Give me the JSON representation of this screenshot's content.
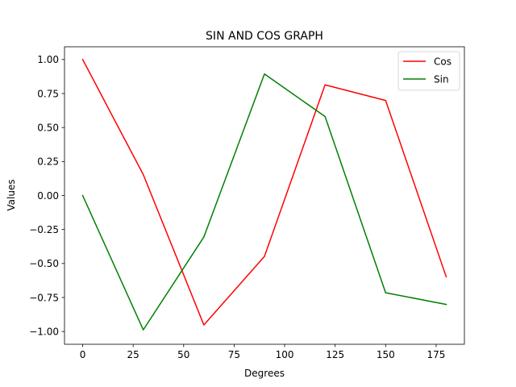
{
  "chart_data": {
    "type": "line",
    "title": "SIN AND COS GRAPH",
    "xlabel": "Degrees",
    "ylabel": "Values",
    "x": [
      0,
      30,
      60,
      90,
      120,
      150,
      180
    ],
    "series": [
      {
        "name": "Cos",
        "color": "#ff0000",
        "values": [
          1.0,
          0.154,
          -0.952,
          -0.448,
          0.814,
          0.699,
          -0.598
        ]
      },
      {
        "name": "Sin",
        "color": "#008000",
        "values": [
          0.0,
          -0.988,
          -0.305,
          0.894,
          0.581,
          -0.715,
          -0.801
        ]
      }
    ],
    "xlim": [
      -9,
      189
    ],
    "ylim": [
      -1.094,
      1.094
    ],
    "xticks": [
      0,
      25,
      50,
      75,
      100,
      125,
      150,
      175
    ],
    "xtick_labels": [
      "0",
      "25",
      "50",
      "75",
      "100",
      "125",
      "150",
      "175"
    ],
    "yticks": [
      1.0,
      0.75,
      0.5,
      0.25,
      0.0,
      -0.25,
      -0.5,
      -0.75,
      -1.0
    ],
    "ytick_labels": [
      "1.00",
      "0.75",
      "0.50",
      "0.25",
      "0.00",
      "−0.25",
      "−0.50",
      "−0.75",
      "−1.00"
    ],
    "grid": false,
    "legend": "top-right"
  }
}
